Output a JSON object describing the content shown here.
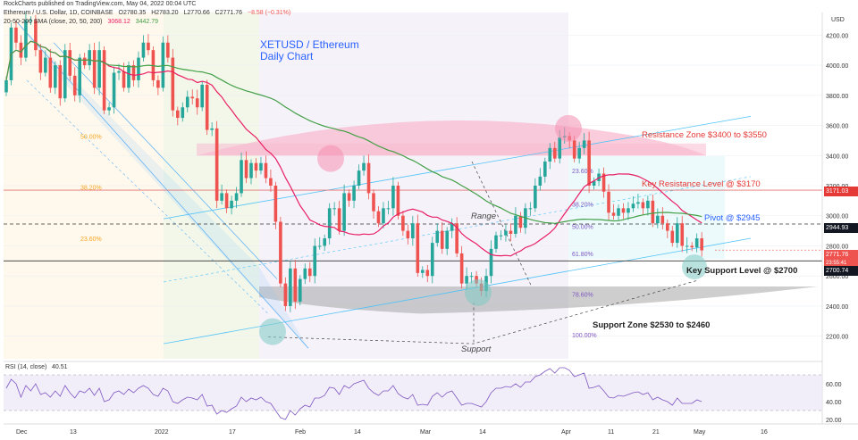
{
  "header": {
    "published": "RockCharts published on TradingView.com, May 04, 2022 00:04 UTC",
    "symbol": "Ethereum / U.S. Dollar, 1D, COINBASE",
    "ohlc": [
      "O2780.35",
      "H2783.20",
      "L2770.66",
      "C2771.76",
      "−8.58 (−0.31%)"
    ],
    "sma_label": "20-50-200 SMA (close, 20, 50, 200)",
    "sma_values": [
      "3068.12",
      "3442.79"
    ]
  },
  "title_lines": [
    "XETUSD / Ethereum",
    "Daily Chart"
  ],
  "annotations": {
    "resistance_zone": "Resistance Zone $3400 to $3550",
    "key_resistance": "Key Resistance Level @ $3170",
    "pivot": "Pivot @ $2945",
    "key_support": "Key Support Level @ $2700",
    "support_zone": "Support Zone $2530 to $2460",
    "range": "Range",
    "support": "Support"
  },
  "colors": {
    "up": "#26a69a",
    "down": "#ef5350",
    "sma20": "#e91e63",
    "sma50": "#43a047",
    "title": "#2962ff",
    "rsi": "#7e57c2",
    "resistance_text": "#e53935",
    "pivot_text": "#2962ff"
  },
  "chart_data": {
    "type": "candlestick",
    "title": "XETUSD / Ethereum Daily Chart",
    "currency": "USD",
    "ylim": [
      2050,
      4350
    ],
    "y_ticks": [
      2200,
      2400,
      2600,
      2800,
      3000,
      3200,
      3400,
      3600,
      3800,
      4000,
      4200
    ],
    "x_ticks": [
      "Dec",
      "13",
      "2022",
      "17",
      "Feb",
      "14",
      "Mar",
      "14",
      "Apr",
      "11",
      "21",
      "May",
      "16"
    ],
    "price_tags": [
      "3171.03",
      "2944.93",
      "2771.76",
      "2700.74"
    ],
    "countdown": "23:55:41",
    "candles_close_approx": [
      3900,
      4250,
      4150,
      4050,
      4300,
      4300,
      4100,
      3950,
      4050,
      3850,
      4000,
      3780,
      4100,
      3930,
      3800,
      4050,
      4000,
      4100,
      3850,
      4100,
      3700,
      3720,
      3950,
      3960,
      3850,
      4000,
      3900,
      4050,
      4150,
      4100,
      3900,
      3850,
      4150,
      4050,
      3700,
      3650,
      3720,
      3790,
      3780,
      3720,
      3870,
      3570,
      3580,
      3100,
      3150,
      3050,
      3100,
      3150,
      3370,
      3250,
      3350,
      3300,
      3350,
      3250,
      3200,
      2960,
      2550,
      2400,
      2650,
      2430,
      2580,
      2650,
      2600,
      2800,
      2800,
      2850,
      3050,
      3050,
      2900,
      3150,
      3100,
      3200,
      3300,
      3350,
      3150,
      3030,
      2950,
      3050,
      3050,
      3200,
      3000,
      2900,
      2850,
      2950,
      2620,
      2640,
      2600,
      2820,
      2900,
      2780,
      2900,
      2950,
      2750,
      2550,
      2600,
      2600,
      2550,
      2500,
      2600,
      2780,
      2870,
      2870,
      2900,
      2880,
      3000,
      2920,
      3050,
      3050,
      3200,
      3260,
      3360,
      3450,
      3380,
      3520,
      3530,
      3500,
      3380,
      3450,
      3500,
      3200,
      3230,
      3280,
      3160,
      3020,
      3000,
      3050,
      3020,
      3050,
      3080,
      3090,
      3050,
      3100,
      2950,
      3000,
      2950,
      2900,
      2820,
      2950,
      2800,
      2800,
      2790,
      2850,
      2770
    ],
    "fib_levels": [
      {
        "label": "50.00%",
        "price": 3500
      },
      {
        "label": "38.20%",
        "price": 3160
      },
      {
        "label": "23.60%",
        "price": 2820
      },
      {
        "label": "23.60%",
        "price": 3270
      },
      {
        "label": "38.20%",
        "price": 3050
      },
      {
        "label": "50.00%",
        "price": 2900
      },
      {
        "label": "61.80%",
        "price": 2720
      },
      {
        "label": "78.60%",
        "price": 2450
      },
      {
        "label": "100.00%",
        "price": 2180
      }
    ],
    "horizontal_levels": [
      {
        "name": "Key Resistance",
        "price": 3170
      },
      {
        "name": "Pivot",
        "price": 2945
      },
      {
        "name": "Key Support",
        "price": 2700
      }
    ],
    "zones": [
      {
        "name": "Resistance Zone",
        "from": 3400,
        "to": 3550
      },
      {
        "name": "Support Zone",
        "from": 2460,
        "to": 2530
      }
    ],
    "rsi": {
      "label": "RSI (14, close)",
      "value": "40.51",
      "ylim": [
        15,
        85
      ],
      "ticks": [
        20,
        40,
        60
      ],
      "values_approx": [
        55,
        65,
        60,
        45,
        58,
        52,
        60,
        48,
        50,
        45,
        52,
        46,
        58,
        50,
        44,
        52,
        50,
        55,
        47,
        55,
        40,
        42,
        50,
        52,
        48,
        54,
        50,
        55,
        58,
        55,
        48,
        46,
        55,
        52,
        40,
        38,
        42,
        45,
        44,
        42,
        48,
        35,
        36,
        26,
        30,
        28,
        32,
        35,
        45,
        40,
        44,
        42,
        45,
        40,
        38,
        30,
        22,
        20,
        30,
        25,
        32,
        36,
        34,
        44,
        44,
        47,
        56,
        55,
        48,
        58,
        55,
        60,
        62,
        64,
        55,
        50,
        47,
        52,
        52,
        58,
        49,
        45,
        43,
        48,
        36,
        37,
        36,
        46,
        50,
        45,
        50,
        52,
        44,
        36,
        38,
        38,
        36,
        34,
        40,
        50,
        55,
        55,
        57,
        56,
        60,
        56,
        62,
        62,
        68,
        70,
        74,
        77,
        72,
        78,
        78,
        75,
        68,
        70,
        72,
        55,
        56,
        58,
        52,
        45,
        44,
        47,
        46,
        48,
        50,
        51,
        48,
        50,
        42,
        45,
        42,
        40,
        36,
        44,
        38,
        38,
        38,
        42,
        40
      ]
    }
  }
}
